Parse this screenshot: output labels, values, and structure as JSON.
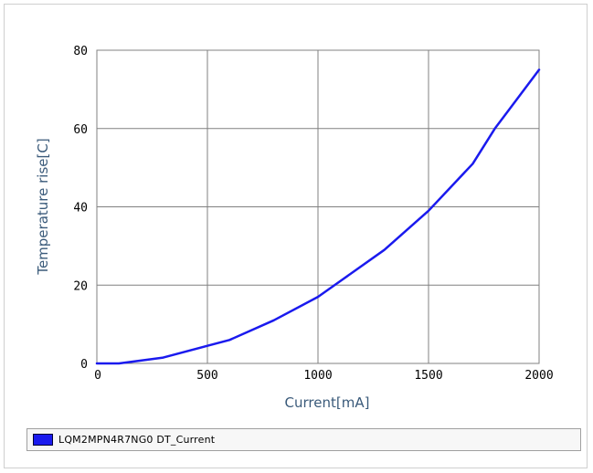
{
  "chart_data": {
    "type": "line",
    "title": "",
    "xlabel": "Current[mA]",
    "ylabel": "Temperature rise[C]",
    "xlim": [
      0,
      2000
    ],
    "ylim": [
      0,
      80
    ],
    "x_ticks": [
      0,
      500,
      1000,
      1500,
      2000
    ],
    "y_ticks": [
      0,
      20,
      40,
      60,
      80
    ],
    "x_tick_labels": [
      "0",
      "500",
      "1000",
      "1500",
      "2000"
    ],
    "y_tick_labels": [
      "0",
      "20",
      "40",
      "60",
      "80"
    ],
    "grid": true,
    "legend_placement": "bottom",
    "colors": {
      "series": "#1a1aee",
      "grid": "#808080",
      "axis_label": "#3a5a7a"
    },
    "series": [
      {
        "name": "LQM2MPN4R7NG0 DT_Current",
        "x": [
          0,
          100,
          300,
          500,
          600,
          800,
          1000,
          1100,
          1300,
          1500,
          1700,
          1800,
          2000
        ],
        "y": [
          0,
          0,
          1.5,
          4.5,
          6,
          11,
          17,
          21,
          29,
          39,
          51,
          60,
          75
        ]
      }
    ]
  }
}
